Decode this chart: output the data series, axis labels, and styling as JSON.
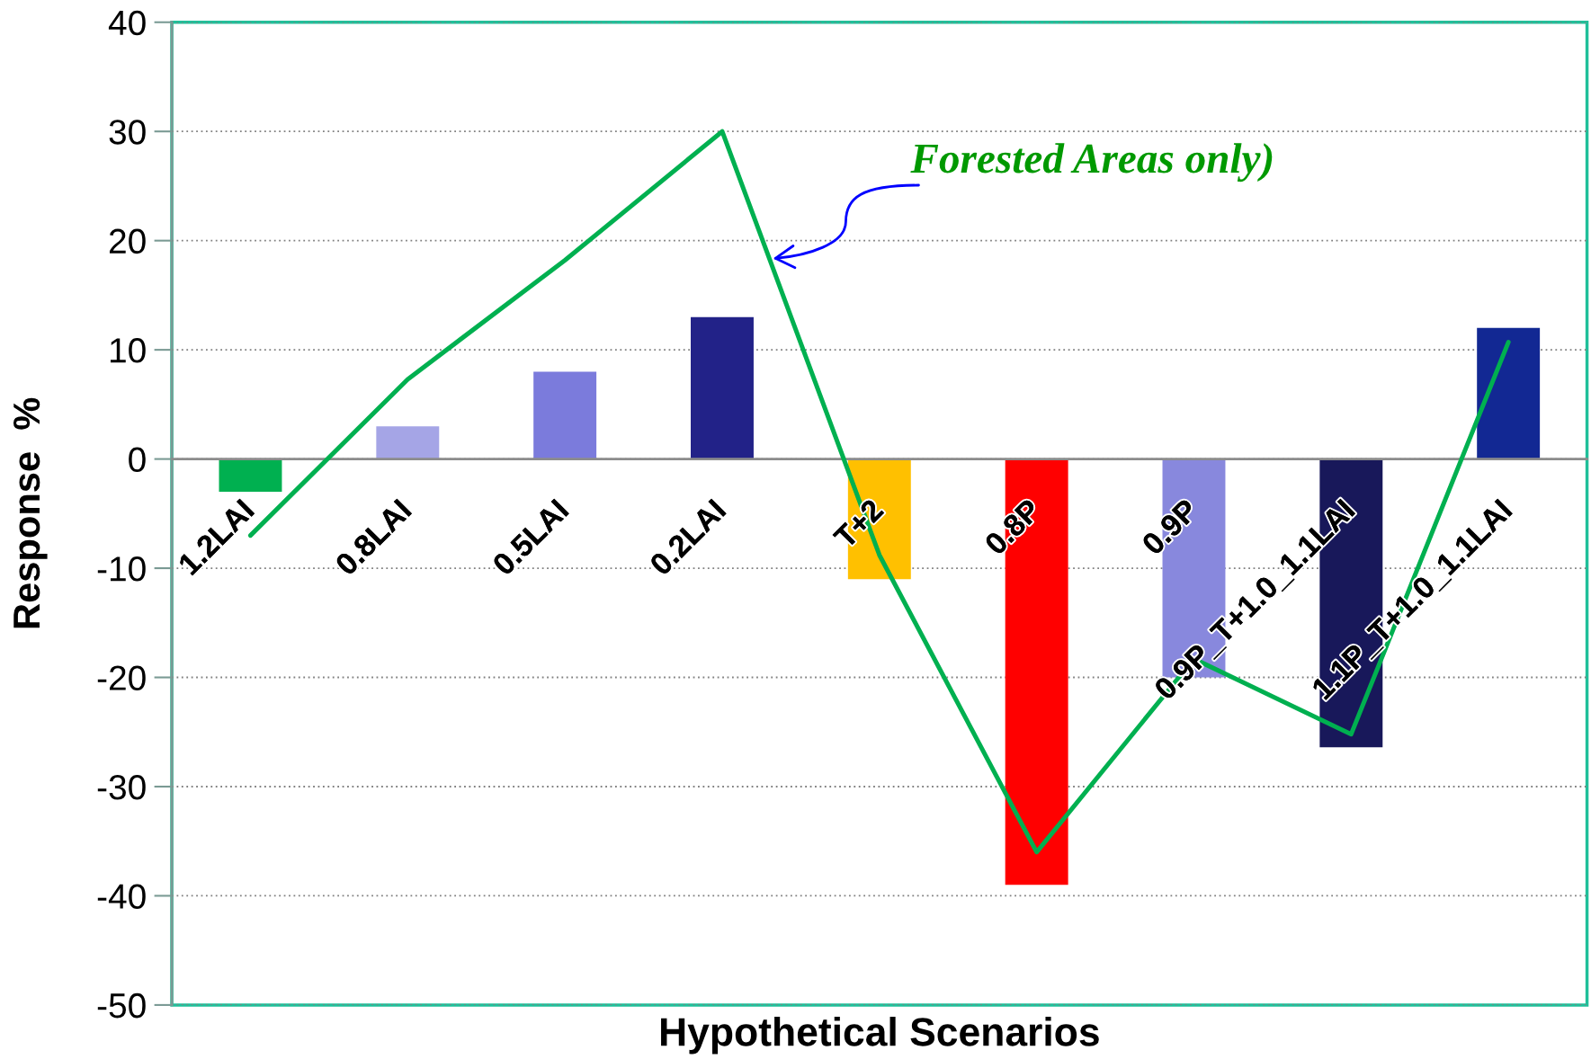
{
  "chart_data": {
    "type": "bar",
    "xlabel": "Hypothetical Scenarios",
    "ylabel": "Response  %",
    "categories": [
      "1.2LAI",
      "0.8LAI",
      "0.5LAI",
      "0.2LAI",
      "T+2",
      "0.8P",
      "0.9P",
      "0.9P_T+1.0_1.1LAI",
      "1.1P_T+1.0_1.1LAI"
    ],
    "series": [
      {
        "colors": [
          "#00b050",
          "#a5a5e6",
          "#7b7bdc",
          "#222288",
          "#ffc000",
          "#ff0000",
          "#8888dd",
          "#18185a",
          "#122893"
        ],
        "values": [
          -3,
          3,
          8,
          13,
          -11,
          -39,
          -20,
          -26.4,
          12
        ]
      },
      {
        "type": "line",
        "name": "Forested Areas only)",
        "color": "#00b050",
        "values": [
          -7,
          7.3,
          18.2,
          30,
          -8.8,
          -36,
          -18.3,
          -25.2,
          10.7
        ]
      }
    ],
    "ylim": [
      -50,
      40
    ],
    "yticks": [
      -50,
      -40,
      -30,
      -20,
      -10,
      0,
      10,
      20,
      30,
      40
    ],
    "grid": "y",
    "line_style": "solid",
    "marker": "none"
  }
}
